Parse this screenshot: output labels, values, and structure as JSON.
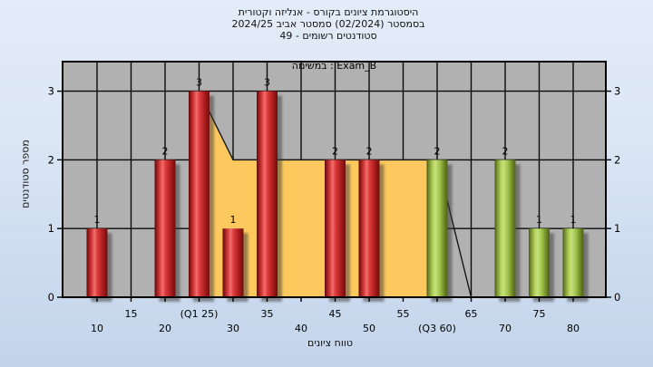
{
  "title": {
    "line1": "היסטוגרמת ציונים בקורס - אנליזה וקטורית",
    "line2": "בסמסטר (02/2024) סמסטר אביב 2024/25",
    "line3": "סטודנטים רשומים - 49"
  },
  "legend": {
    "label": "במשימה : Exam_B"
  },
  "axes": {
    "y_label": "מספר סטודנטים",
    "x_label": "טווח ציונים",
    "y_ticks": [
      "0",
      "1",
      "2",
      "3"
    ],
    "x_ticks": [
      {
        "value": 10,
        "label": "10",
        "row": 2
      },
      {
        "value": 15,
        "label": "15",
        "row": 1
      },
      {
        "value": 20,
        "label": "20",
        "row": 2
      },
      {
        "value": 25,
        "label": "(Q1 25)",
        "row": 1
      },
      {
        "value": 30,
        "label": "30",
        "row": 2
      },
      {
        "value": 35,
        "label": "35",
        "row": 1
      },
      {
        "value": 40,
        "label": "40",
        "row": 2
      },
      {
        "value": 45,
        "label": "45",
        "row": 1
      },
      {
        "value": 50,
        "label": "50",
        "row": 2
      },
      {
        "value": 55,
        "label": "55",
        "row": 1
      },
      {
        "value": 60,
        "label": "(Q3 60)",
        "row": 2
      },
      {
        "value": 65,
        "label": "65",
        "row": 1
      },
      {
        "value": 70,
        "label": "70",
        "row": 2
      },
      {
        "value": 75,
        "label": "75",
        "row": 1
      },
      {
        "value": 80,
        "label": "80",
        "row": 2
      }
    ]
  },
  "chart_data": {
    "type": "bar",
    "title": "היסטוגרמת ציונים בקורס - אנליזה וקטורית בסמסטר (02/2024) סמסטר אביב 2024/25 | סטודנטים רשומים - 49",
    "series_name": "Exam_B",
    "xlabel": "טווח ציונים",
    "ylabel": "מספר סטודנטים",
    "xlim": [
      5,
      85
    ],
    "ylim": [
      0,
      3.43
    ],
    "grid": true,
    "legend_position": "top-center-inside",
    "bars": [
      {
        "x": 10,
        "value": 1,
        "color_group": "red"
      },
      {
        "x": 20,
        "value": 2,
        "color_group": "red"
      },
      {
        "x": 25,
        "value": 3,
        "color_group": "red"
      },
      {
        "x": 30,
        "value": 1,
        "color_group": "red"
      },
      {
        "x": 35,
        "value": 3,
        "color_group": "red"
      },
      {
        "x": 45,
        "value": 2,
        "color_group": "red"
      },
      {
        "x": 50,
        "value": 2,
        "color_group": "red"
      },
      {
        "x": 60,
        "value": 2,
        "color_group": "green"
      },
      {
        "x": 70,
        "value": 2,
        "color_group": "green"
      },
      {
        "x": 75,
        "value": 1,
        "color_group": "green"
      },
      {
        "x": 80,
        "value": 1,
        "color_group": "green"
      }
    ],
    "quartile_band": {
      "q1_label": "(Q1 25)",
      "q3_label": "(Q3 60)",
      "outline_points": [
        [
          25,
          3
        ],
        [
          30,
          2
        ],
        [
          60,
          2
        ],
        [
          65,
          0
        ]
      ],
      "fill_points": [
        [
          25,
          3
        ],
        [
          30,
          2
        ],
        [
          60,
          2
        ],
        [
          60,
          0
        ],
        [
          25,
          0
        ]
      ],
      "fill_color": "#fdc95e"
    },
    "colors": {
      "plot_bg": "#b1b1b1",
      "grid": "#0a0a0a",
      "band_fill": "#fdc95e",
      "bar_red_dark": "#6e0d0d",
      "bar_red_light": "#f07070",
      "bar_green_dark": "#4c5c16",
      "bar_green_light": "#c6e07c",
      "shadow": "rgba(55,55,55,0.5)"
    }
  }
}
